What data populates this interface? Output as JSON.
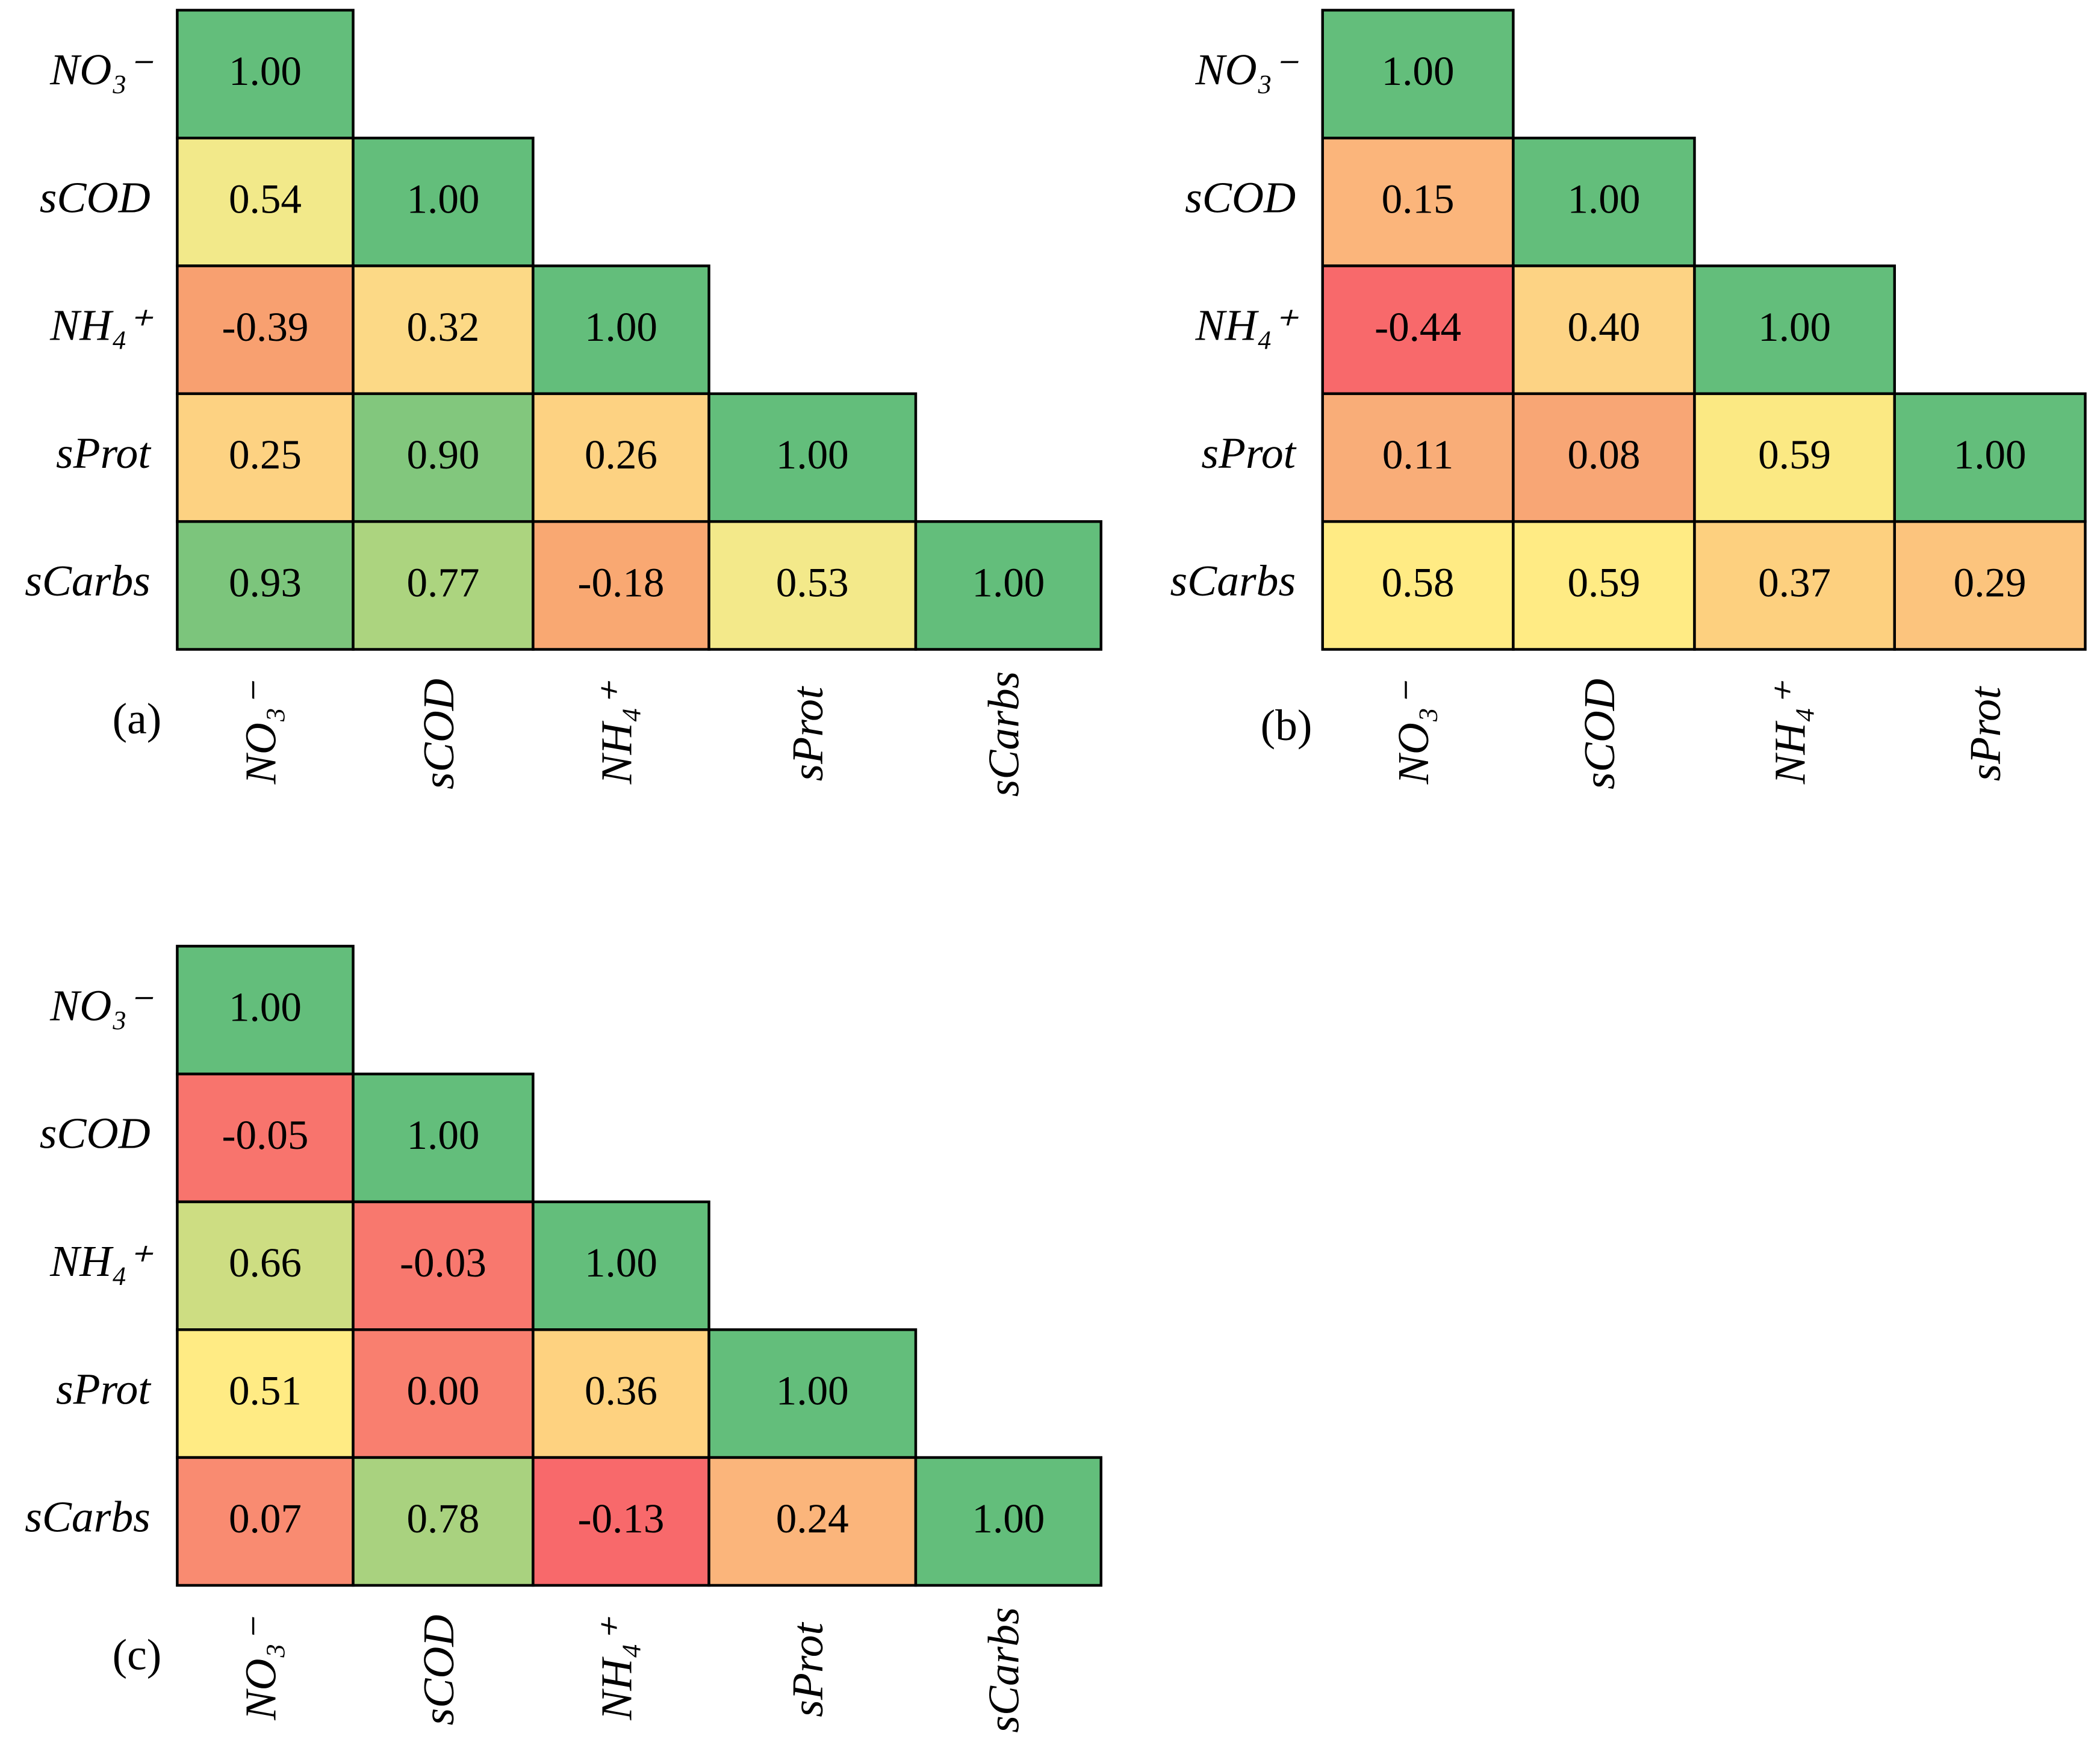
{
  "chart_data": [
    {
      "type": "heatmap",
      "panel_label": "(a)",
      "y_categories": [
        "NO₃⁻",
        "sCOD",
        "NH₄⁺",
        "sProt",
        "sCarbs"
      ],
      "x_categories": [
        "NO₃⁻",
        "sCOD",
        "NH₄⁺",
        "sProt",
        "sCarbs"
      ],
      "values": [
        [
          1,
          null,
          null,
          null,
          null
        ],
        [
          0.54,
          1,
          null,
          null,
          null
        ],
        [
          -0.39,
          0.32,
          1,
          null,
          null
        ],
        [
          0.25,
          0.9,
          0.26,
          1,
          null
        ],
        [
          0.93,
          0.77,
          -0.18,
          0.53,
          1
        ]
      ],
      "value_labels": [
        [
          "1.00",
          null,
          null,
          null,
          null
        ],
        [
          "0.54",
          "1.00",
          null,
          null,
          null
        ],
        [
          "-0.39",
          "0.32",
          "1.00",
          null,
          null
        ],
        [
          "0.25",
          "0.90",
          "0.26",
          "1.00",
          null
        ],
        [
          "0.93",
          "0.77",
          "-0.18",
          "0.53",
          "1.00"
        ]
      ],
      "colors": [
        [
          "#63be7b",
          null,
          null,
          null,
          null
        ],
        [
          "#f2e98a",
          "#63be7b",
          null,
          null,
          null
        ],
        [
          "#f8a070",
          "#fcd986",
          "#63be7b",
          null,
          null
        ],
        [
          "#fdd282",
          "#82c77d",
          "#fdd282",
          "#63be7b",
          null
        ],
        [
          "#7cc57c",
          "#acd47f",
          "#f9a872",
          "#f3e98a",
          "#63be7b"
        ]
      ]
    },
    {
      "type": "heatmap",
      "panel_label": "(b)",
      "y_categories": [
        "NO₃⁻",
        "sCOD",
        "NH₄⁺",
        "sProt",
        "sCarbs"
      ],
      "x_categories": [
        "NO₃⁻",
        "sCOD",
        "NH₄⁺",
        "sProt",
        null
      ],
      "values": [
        [
          1,
          null,
          null,
          null,
          null
        ],
        [
          0.15,
          1,
          null,
          null,
          null
        ],
        [
          -0.44,
          0.4,
          1,
          null,
          null
        ],
        [
          0.11,
          0.08,
          0.59,
          1,
          null
        ],
        [
          0.58,
          0.59,
          0.37,
          0.29,
          null
        ]
      ],
      "value_labels": [
        [
          "1.00",
          null,
          null,
          null,
          null
        ],
        [
          "0.15",
          "1.00",
          null,
          null,
          null
        ],
        [
          "-0.44",
          "0.40",
          "1.00",
          null,
          null
        ],
        [
          "0.11",
          "0.08",
          "0.59",
          "1.00",
          null
        ],
        [
          "0.58",
          "0.59",
          "0.37",
          "0.29",
          null
        ]
      ],
      "colors": [
        [
          "#63be7b",
          null,
          null,
          null,
          null
        ],
        [
          "#fbb57b",
          "#63be7b",
          null,
          null,
          null
        ],
        [
          "#f8696b",
          "#fdd384",
          "#63be7b",
          null,
          null
        ],
        [
          "#f9ad78",
          "#f8a675",
          "#fbe983",
          "#63be7b",
          null
        ],
        [
          "#ffeb84",
          "#ffeb84",
          "#fdd07f",
          "#fcc47d",
          null
        ]
      ]
    },
    {
      "type": "heatmap",
      "panel_label": "(c)",
      "y_categories": [
        "NO₃⁻",
        "sCOD",
        "NH₄⁺",
        "sProt",
        "sCarbs"
      ],
      "x_categories": [
        "NO₃⁻",
        "sCOD",
        "NH₄⁺",
        "sProt",
        "sCarbs"
      ],
      "values": [
        [
          1,
          null,
          null,
          null,
          null
        ],
        [
          -0.05,
          1,
          null,
          null,
          null
        ],
        [
          0.66,
          -0.03,
          1,
          null,
          null
        ],
        [
          0.51,
          0,
          0.36,
          1,
          null
        ],
        [
          0.07,
          0.78,
          -0.13,
          0.24,
          1
        ]
      ],
      "value_labels": [
        [
          "1.00",
          null,
          null,
          null,
          null
        ],
        [
          "-0.05",
          "1.00",
          null,
          null,
          null
        ],
        [
          "0.66",
          "-0.03",
          "1.00",
          null,
          null
        ],
        [
          "0.51",
          "0.00",
          "0.36",
          "1.00",
          null
        ],
        [
          "0.07",
          "0.78",
          "-0.13",
          "0.24",
          "1.00"
        ]
      ],
      "colors": [
        [
          "#63be7b",
          null,
          null,
          null,
          null
        ],
        [
          "#f8746d",
          "#63be7b",
          null,
          null,
          null
        ],
        [
          "#cddd82",
          "#f8786e",
          "#63be7b",
          null,
          null
        ],
        [
          "#ffeb84",
          "#f97f6f",
          "#fed280",
          "#63be7b",
          null
        ],
        [
          "#f98b71",
          "#a9d27f",
          "#f8696b",
          "#fbb57b",
          "#63be7b"
        ]
      ]
    }
  ]
}
